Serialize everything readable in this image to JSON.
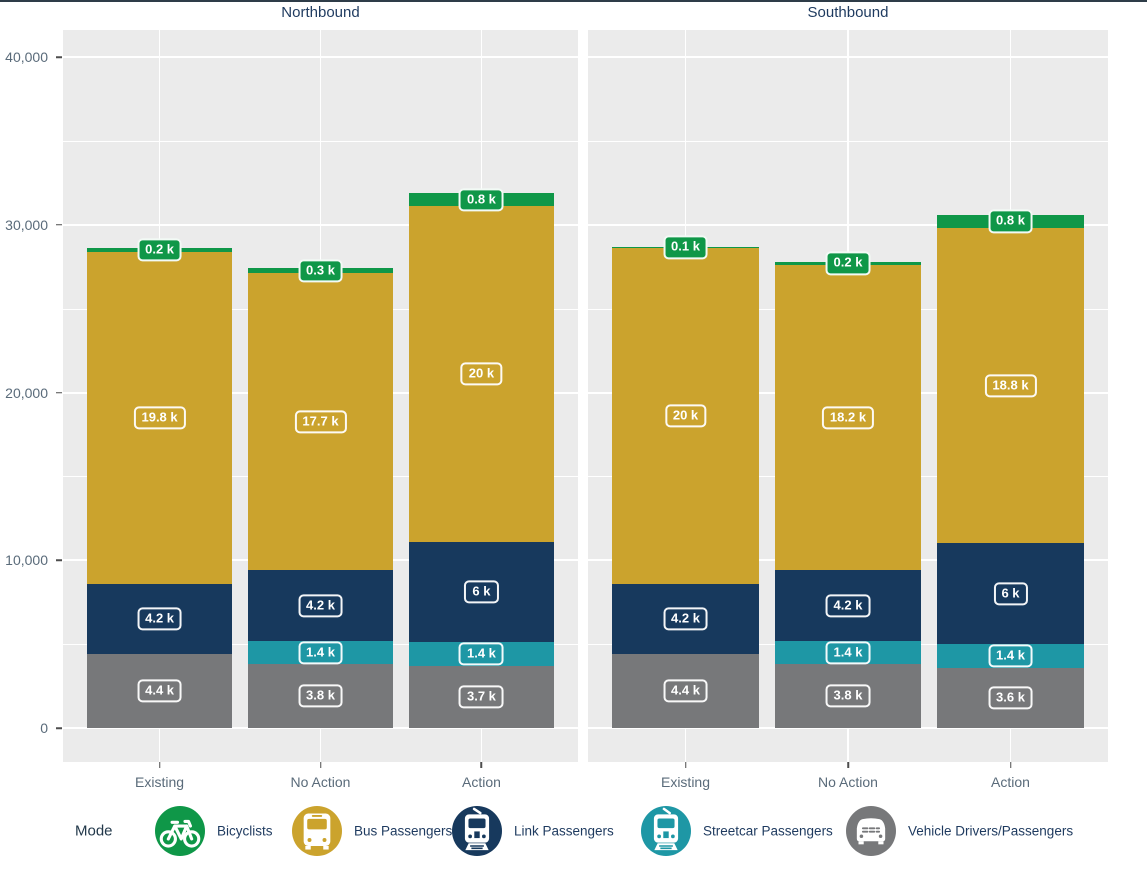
{
  "chart_data": {
    "type": "bar",
    "stacked": true,
    "grid": true,
    "facets": [
      "Northbound",
      "Southbound"
    ],
    "categories": [
      "Existing",
      "No Action",
      "Action"
    ],
    "ylim": [
      0,
      40000
    ],
    "yticks": [
      {
        "label": "0",
        "value": 0
      },
      {
        "label": "10,000",
        "value": 10000
      },
      {
        "label": "20,000",
        "value": 20000
      },
      {
        "label": "30,000",
        "value": 30000
      },
      {
        "label": "40,000",
        "value": 40000
      }
    ],
    "minor_gridlines": [
      5000,
      15000,
      25000,
      35000
    ],
    "series": [
      {
        "name": "Vehicle Drivers/Passengers",
        "color": "#77787a",
        "values": {
          "Northbound": [
            4400,
            3800,
            3700
          ],
          "Southbound": [
            4400,
            3800,
            3600
          ]
        },
        "labels": {
          "Northbound": [
            "4.4 k",
            "3.8 k",
            "3.7 k"
          ],
          "Southbound": [
            "4.4 k",
            "3.8 k",
            "3.6 k"
          ]
        }
      },
      {
        "name": "Streetcar Passengers",
        "color": "#1e97a5",
        "values": {
          "Northbound": [
            0,
            1400,
            1400
          ],
          "Southbound": [
            0,
            1400,
            1400
          ]
        },
        "labels": {
          "Northbound": [
            "",
            "1.4 k",
            "1.4 k"
          ],
          "Southbound": [
            "",
            "1.4 k",
            "1.4 k"
          ]
        }
      },
      {
        "name": "Link Passengers",
        "color": "#17395d",
        "values": {
          "Northbound": [
            4200,
            4200,
            6000
          ],
          "Southbound": [
            4200,
            4200,
            6000
          ]
        },
        "labels": {
          "Northbound": [
            "4.2 k",
            "4.2 k",
            "6 k"
          ],
          "Southbound": [
            "4.2 k",
            "4.2 k",
            "6 k"
          ]
        }
      },
      {
        "name": "Bus Passengers",
        "color": "#cba32d",
        "values": {
          "Northbound": [
            19800,
            17700,
            20000
          ],
          "Southbound": [
            20000,
            18200,
            18800
          ]
        },
        "labels": {
          "Northbound": [
            "19.8 k",
            "17.7 k",
            "20 k"
          ],
          "Southbound": [
            "20 k",
            "18.2 k",
            "18.8 k"
          ]
        }
      },
      {
        "name": "Bicyclists",
        "color": "#0f9748",
        "values": {
          "Northbound": [
            200,
            300,
            800
          ],
          "Southbound": [
            100,
            200,
            800
          ]
        },
        "labels": {
          "Northbound": [
            "0.2 k",
            "0.3 k",
            "0.8 k"
          ],
          "Southbound": [
            "0.1 k",
            "0.2 k",
            "0.8 k"
          ]
        }
      }
    ],
    "legend": {
      "title": "Mode",
      "position": "bottom",
      "entries": [
        {
          "label": "Bicyclists",
          "color": "#0f9748",
          "icon": "bicycle-icon"
        },
        {
          "label": "Bus Passengers",
          "color": "#cba32d",
          "icon": "bus-icon"
        },
        {
          "label": "Link Passengers",
          "color": "#17395d",
          "icon": "light-rail-icon"
        },
        {
          "label": "Streetcar Passengers",
          "color": "#1e97a5",
          "icon": "streetcar-icon"
        },
        {
          "label": "Vehicle Drivers/Passengers",
          "color": "#77787a",
          "icon": "car-icon"
        }
      ]
    }
  }
}
